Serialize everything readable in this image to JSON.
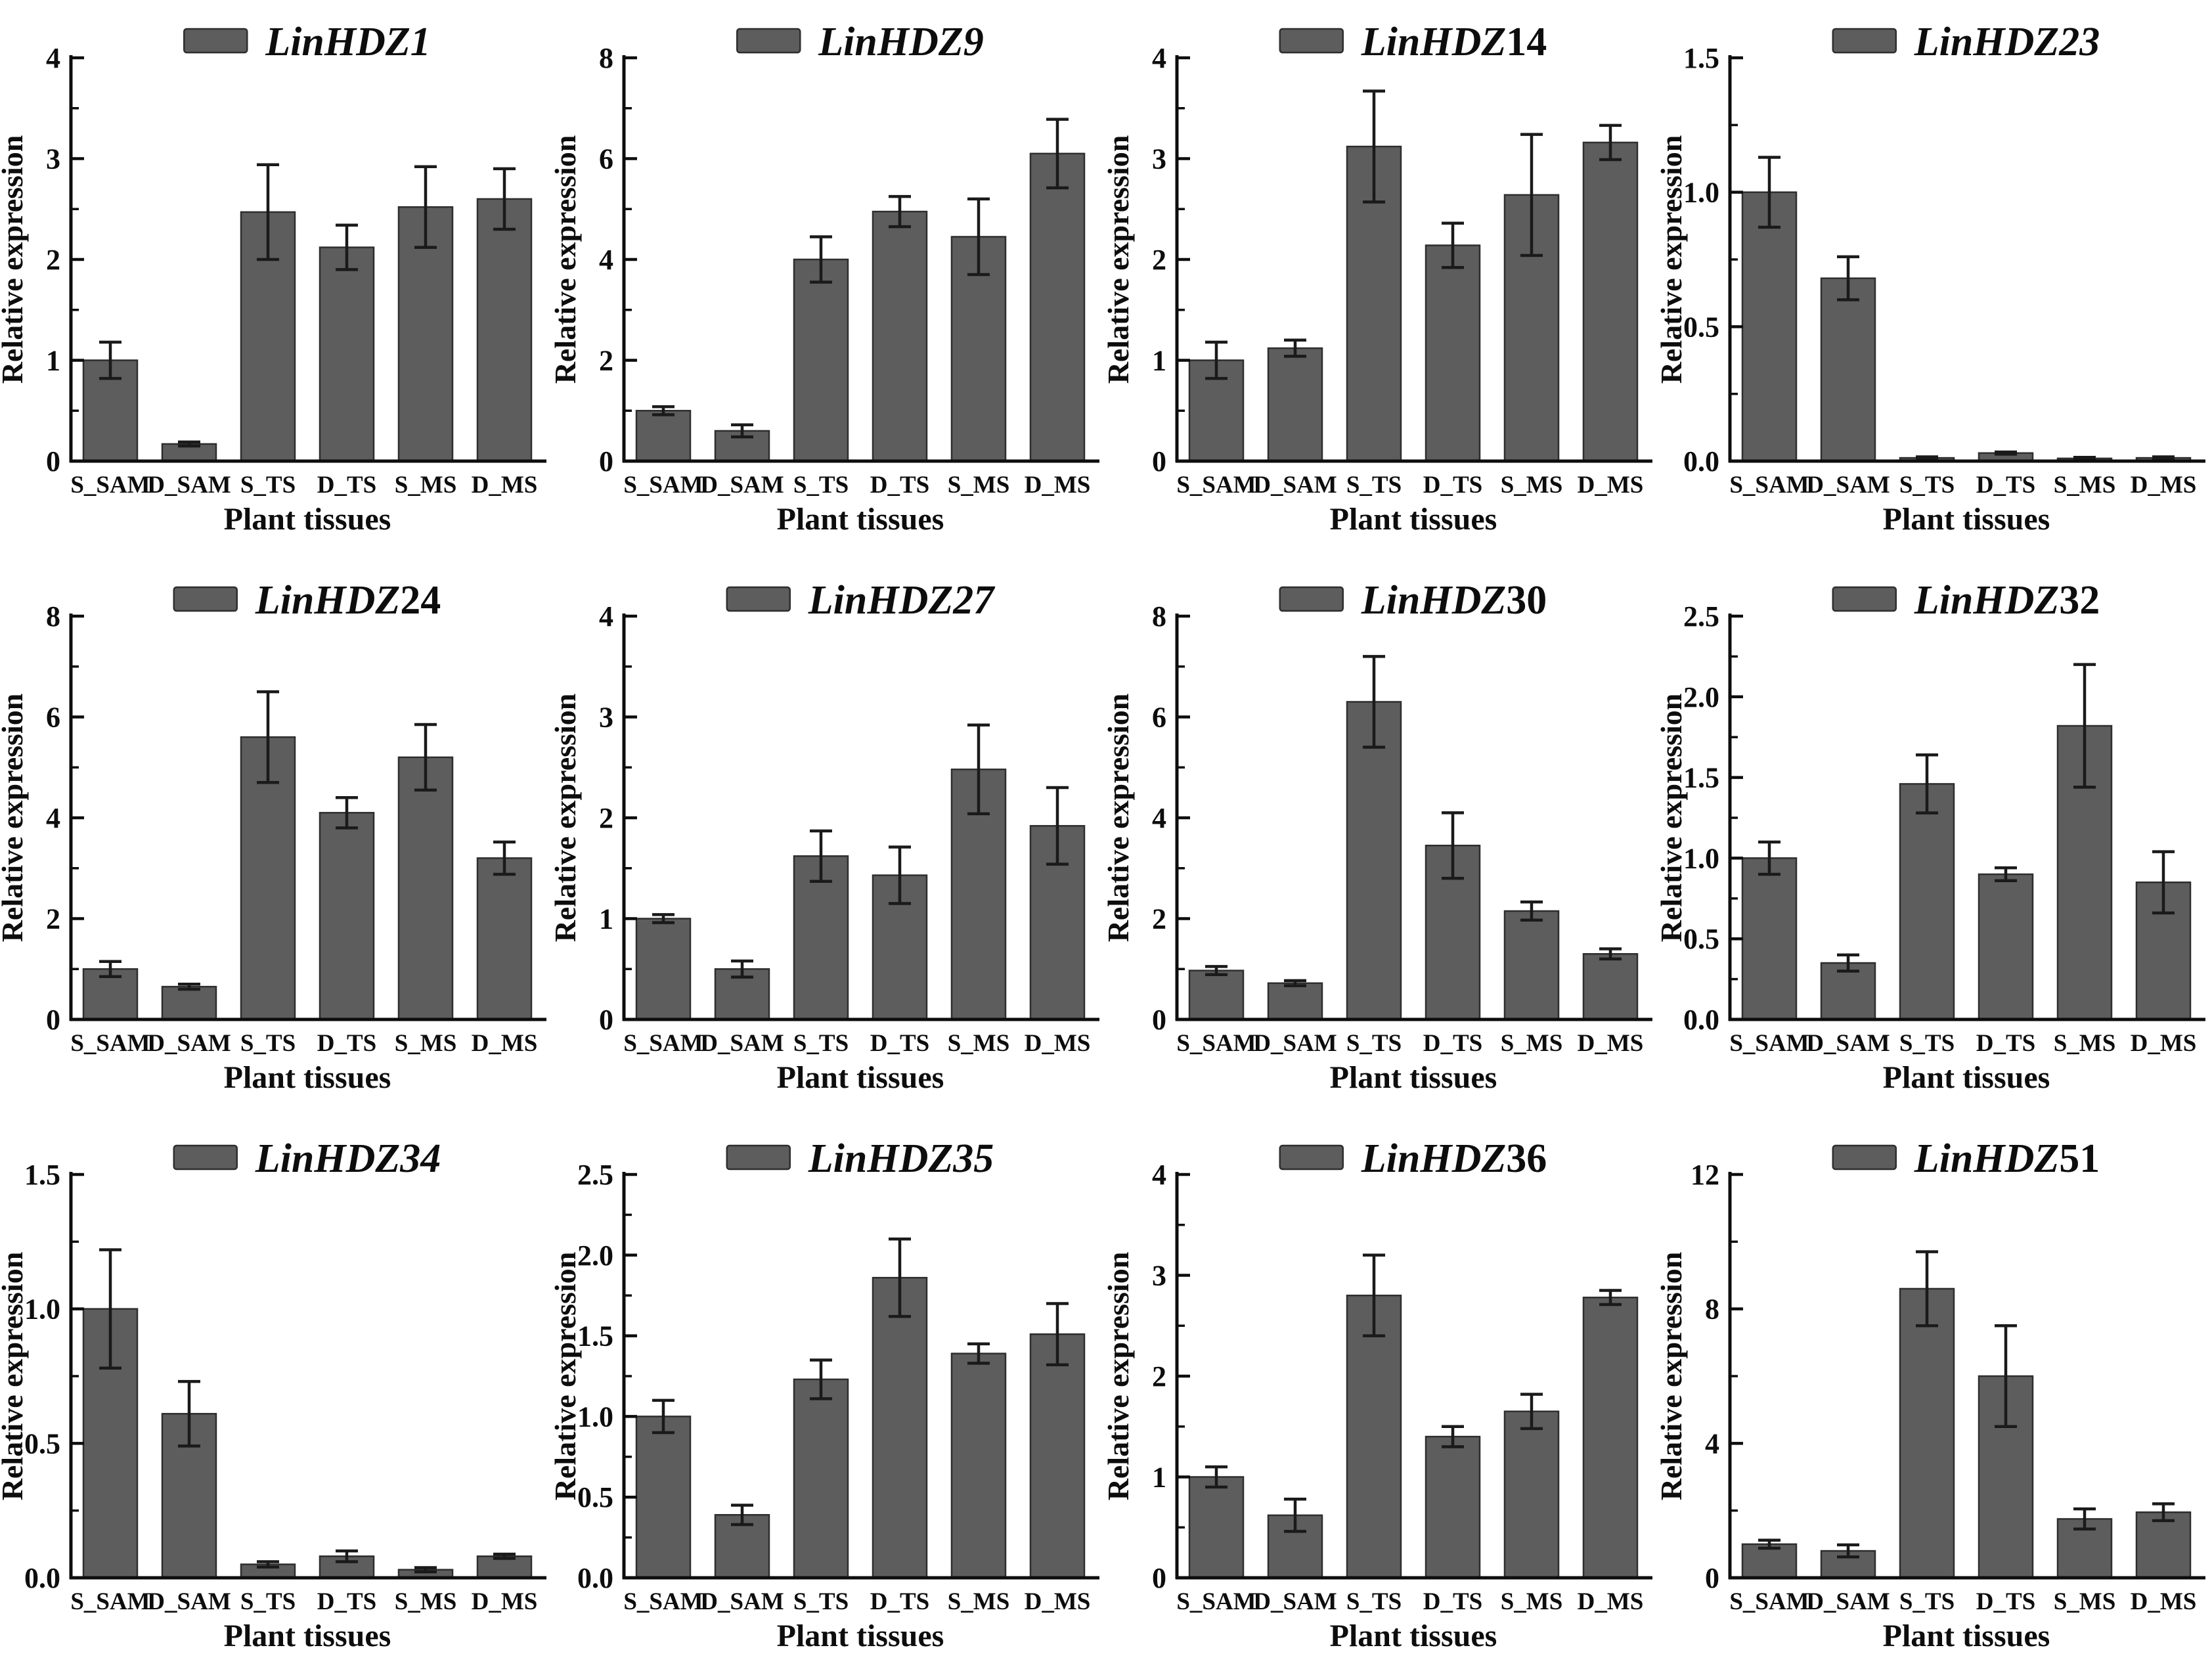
{
  "figure": {
    "ylabel": "Relative expression",
    "xlabel": "Plant tissues",
    "categories": [
      "S_SAM",
      "D_SAM",
      "S_TS",
      "D_TS",
      "S_MS",
      "D_MS"
    ],
    "colors": {
      "bar_fill": "#5d5d5d",
      "bar_border": "#2e2e2e",
      "axis": "#0d0d0d",
      "error_bar": "#1a1a1a",
      "background": "#ffffff"
    }
  },
  "chart_data": [
    {
      "type": "bar",
      "title": "LinHDZ1",
      "title_italic": "LinHDZ1",
      "title_upright": "",
      "ylim": [
        0,
        4
      ],
      "yticks": [
        0,
        1,
        2,
        3,
        4
      ],
      "ytick_labels": [
        "0",
        "1",
        "2",
        "3",
        "4"
      ],
      "categories": [
        "S_SAM",
        "D_SAM",
        "S_TS",
        "D_TS",
        "S_MS",
        "D_MS"
      ],
      "values": [
        1.0,
        0.17,
        2.47,
        2.12,
        2.52,
        2.6
      ],
      "errors": [
        0.18,
        0.02,
        0.47,
        0.22,
        0.4,
        0.3
      ],
      "xlabel": "Plant tissues",
      "ylabel": "Relative expression",
      "grid": false,
      "legend_position": "top-center"
    },
    {
      "type": "bar",
      "title": "LinHDZ9",
      "title_italic": "LinHDZ9",
      "title_upright": "",
      "ylim": [
        0,
        8
      ],
      "yticks": [
        0,
        2,
        4,
        6,
        8
      ],
      "ytick_labels": [
        "0",
        "2",
        "4",
        "6",
        "8"
      ],
      "categories": [
        "S_SAM",
        "D_SAM",
        "S_TS",
        "D_TS",
        "S_MS",
        "D_MS"
      ],
      "values": [
        1.0,
        0.6,
        4.0,
        4.95,
        4.45,
        6.1
      ],
      "errors": [
        0.08,
        0.12,
        0.45,
        0.3,
        0.75,
        0.68
      ],
      "xlabel": "Plant tissues",
      "ylabel": "Relative expression",
      "grid": false,
      "legend_position": "top-center"
    },
    {
      "type": "bar",
      "title": "LinHDZ14",
      "title_italic": "LinHDZ",
      "title_upright": "14",
      "ylim": [
        0,
        4
      ],
      "yticks": [
        0,
        1,
        2,
        3,
        4
      ],
      "ytick_labels": [
        "0",
        "1",
        "2",
        "3",
        "4"
      ],
      "categories": [
        "S_SAM",
        "D_SAM",
        "S_TS",
        "D_TS",
        "S_MS",
        "D_MS"
      ],
      "values": [
        1.0,
        1.12,
        3.12,
        2.14,
        2.64,
        3.16
      ],
      "errors": [
        0.18,
        0.08,
        0.55,
        0.22,
        0.6,
        0.17
      ],
      "xlabel": "Plant tissues",
      "ylabel": "Relative expression",
      "grid": false,
      "legend_position": "top-center"
    },
    {
      "type": "bar",
      "title": "LinHDZ23",
      "title_italic": "LinHDZ23",
      "title_upright": "",
      "ylim": [
        0,
        1.5
      ],
      "yticks": [
        0,
        0.5,
        1.0,
        1.5
      ],
      "ytick_labels": [
        "0.0",
        "0.5",
        "1.0",
        "1.5"
      ],
      "categories": [
        "S_SAM",
        "D_SAM",
        "S_TS",
        "D_TS",
        "S_MS",
        "D_MS"
      ],
      "values": [
        1.0,
        0.68,
        0.012,
        0.03,
        0.01,
        0.012
      ],
      "errors": [
        0.13,
        0.08,
        0.004,
        0.004,
        0.004,
        0.004
      ],
      "xlabel": "Plant tissues",
      "ylabel": "Relative expression",
      "grid": false,
      "legend_position": "top-center"
    },
    {
      "type": "bar",
      "title": "LinHDZ24",
      "title_italic": "LinHDZ",
      "title_upright": "24",
      "ylim": [
        0,
        8
      ],
      "yticks": [
        0,
        2,
        4,
        6,
        8
      ],
      "ytick_labels": [
        "0",
        "2",
        "4",
        "6",
        "8"
      ],
      "categories": [
        "S_SAM",
        "D_SAM",
        "S_TS",
        "D_TS",
        "S_MS",
        "D_MS"
      ],
      "values": [
        1.0,
        0.65,
        5.6,
        4.1,
        5.2,
        3.2
      ],
      "errors": [
        0.15,
        0.05,
        0.9,
        0.3,
        0.65,
        0.32
      ],
      "xlabel": "Plant tissues",
      "ylabel": "Relative expression",
      "grid": false,
      "legend_position": "top-center"
    },
    {
      "type": "bar",
      "title": "LinHDZ27",
      "title_italic": "LinHDZ27",
      "title_upright": "",
      "ylim": [
        0,
        4
      ],
      "yticks": [
        0,
        1,
        2,
        3,
        4
      ],
      "ytick_labels": [
        "0",
        "1",
        "2",
        "3",
        "4"
      ],
      "categories": [
        "S_SAM",
        "D_SAM",
        "S_TS",
        "D_TS",
        "S_MS",
        "D_MS"
      ],
      "values": [
        1.0,
        0.5,
        1.62,
        1.43,
        2.48,
        1.92
      ],
      "errors": [
        0.04,
        0.08,
        0.25,
        0.28,
        0.44,
        0.38
      ],
      "xlabel": "Plant tissues",
      "ylabel": "Relative expression",
      "grid": false,
      "legend_position": "top-center"
    },
    {
      "type": "bar",
      "title": "LinHDZ30",
      "title_italic": "LinHDZ",
      "title_upright": "30",
      "ylim": [
        0,
        8
      ],
      "yticks": [
        0,
        2,
        4,
        6,
        8
      ],
      "ytick_labels": [
        "0",
        "2",
        "4",
        "6",
        "8"
      ],
      "categories": [
        "S_SAM",
        "D_SAM",
        "S_TS",
        "D_TS",
        "S_MS",
        "D_MS"
      ],
      "values": [
        0.97,
        0.72,
        6.3,
        3.45,
        2.15,
        1.3
      ],
      "errors": [
        0.08,
        0.05,
        0.9,
        0.65,
        0.18,
        0.1
      ],
      "xlabel": "Plant tissues",
      "ylabel": "Relative expression",
      "grid": false,
      "legend_position": "top-center"
    },
    {
      "type": "bar",
      "title": "LinHDZ32",
      "title_italic": "LinHDZ",
      "title_upright": "32",
      "ylim": [
        0,
        2.5
      ],
      "yticks": [
        0,
        0.5,
        1.0,
        1.5,
        2.0,
        2.5
      ],
      "ytick_labels": [
        "0.0",
        "0.5",
        "1.0",
        "1.5",
        "2.0",
        "2.5"
      ],
      "categories": [
        "S_SAM",
        "D_SAM",
        "S_TS",
        "D_TS",
        "S_MS",
        "D_MS"
      ],
      "values": [
        1.0,
        0.35,
        1.46,
        0.9,
        1.82,
        0.85
      ],
      "errors": [
        0.1,
        0.05,
        0.18,
        0.04,
        0.38,
        0.19
      ],
      "xlabel": "Plant tissues",
      "ylabel": "Relative expression",
      "grid": false,
      "legend_position": "top-center"
    },
    {
      "type": "bar",
      "title": "LinHDZ34",
      "title_italic": "LinHDZ34",
      "title_upright": "",
      "ylim": [
        0,
        1.5
      ],
      "yticks": [
        0,
        0.5,
        1.0,
        1.5
      ],
      "ytick_labels": [
        "0.0",
        "0.5",
        "1.0",
        "1.5"
      ],
      "categories": [
        "S_SAM",
        "D_SAM",
        "S_TS",
        "D_TS",
        "S_MS",
        "D_MS"
      ],
      "values": [
        1.0,
        0.61,
        0.05,
        0.08,
        0.03,
        0.08
      ],
      "errors": [
        0.22,
        0.12,
        0.01,
        0.02,
        0.008,
        0.008
      ],
      "xlabel": "Plant tissues",
      "ylabel": "Relative expression",
      "grid": false,
      "legend_position": "top-center"
    },
    {
      "type": "bar",
      "title": "LinHDZ35",
      "title_italic": "LinHDZ35",
      "title_upright": "",
      "ylim": [
        0,
        2.5
      ],
      "yticks": [
        0,
        0.5,
        1.0,
        1.5,
        2.0,
        2.5
      ],
      "ytick_labels": [
        "0.0",
        "0.5",
        "1.0",
        "1.5",
        "2.0",
        "2.5"
      ],
      "categories": [
        "S_SAM",
        "D_SAM",
        "S_TS",
        "D_TS",
        "S_MS",
        "D_MS"
      ],
      "values": [
        1.0,
        0.39,
        1.23,
        1.86,
        1.39,
        1.51
      ],
      "errors": [
        0.1,
        0.06,
        0.12,
        0.24,
        0.06,
        0.19
      ],
      "xlabel": "Plant tissues",
      "ylabel": "Relative expression",
      "grid": false,
      "legend_position": "top-center"
    },
    {
      "type": "bar",
      "title": "LinHDZ36",
      "title_italic": "LinHDZ",
      "title_upright": "36",
      "ylim": [
        0,
        4
      ],
      "yticks": [
        0,
        1,
        2,
        3,
        4
      ],
      "ytick_labels": [
        "0",
        "1",
        "2",
        "3",
        "4"
      ],
      "categories": [
        "S_SAM",
        "D_SAM",
        "S_TS",
        "D_TS",
        "S_MS",
        "D_MS"
      ],
      "values": [
        1.0,
        0.62,
        2.8,
        1.4,
        1.65,
        2.78
      ],
      "errors": [
        0.1,
        0.16,
        0.4,
        0.1,
        0.17,
        0.07
      ],
      "xlabel": "Plant tissues",
      "ylabel": "Relative expression",
      "grid": false,
      "legend_position": "top-center"
    },
    {
      "type": "bar",
      "title": "LinHDZ51",
      "title_italic": "LinHDZ",
      "title_upright": "51",
      "ylim": [
        0,
        12
      ],
      "yticks": [
        0,
        4,
        8,
        12
      ],
      "ytick_labels": [
        "0",
        "4",
        "8",
        "12"
      ],
      "categories": [
        "S_SAM",
        "D_SAM",
        "S_TS",
        "D_TS",
        "S_MS",
        "D_MS"
      ],
      "values": [
        1.0,
        0.8,
        8.6,
        6.0,
        1.75,
        1.95
      ],
      "errors": [
        0.12,
        0.18,
        1.1,
        1.5,
        0.3,
        0.25
      ],
      "xlabel": "Plant tissues",
      "ylabel": "Relative expression",
      "grid": false,
      "legend_position": "top-center"
    }
  ]
}
